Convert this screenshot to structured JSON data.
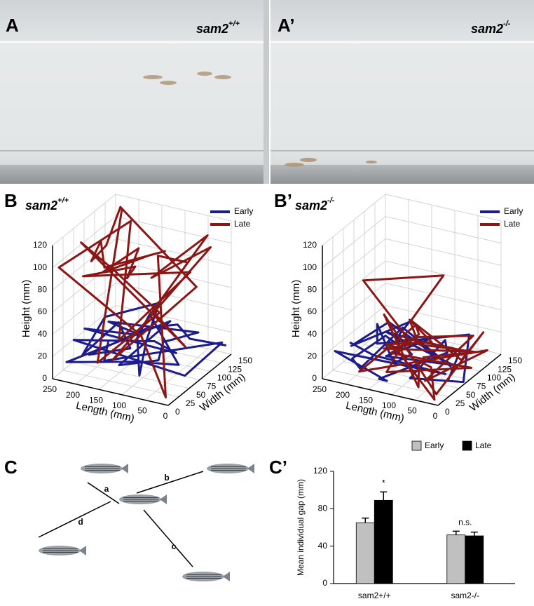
{
  "photo": {
    "left": {
      "label": "A",
      "gene": "sam2",
      "genotype": "+/+"
    },
    "right": {
      "label": "A’",
      "gene": "sam2",
      "genotype": "-/-"
    }
  },
  "plots3d": [
    {
      "label": "B",
      "gene": "sam2",
      "genotype": "+/+",
      "series": [
        {
          "name": "Early",
          "color": "#1c1c8c"
        },
        {
          "name": "Late",
          "color": "#8b1616"
        }
      ],
      "zlabel": "Height (mm)",
      "xlabel": "Length (mm)",
      "ylabel": "Width (mm)",
      "hlim": [
        0,
        120
      ],
      "llim": [
        0,
        250
      ],
      "wlim": [
        0,
        150
      ],
      "hticks": [
        0,
        20,
        40,
        60,
        80,
        100,
        120
      ],
      "lticks": [
        250,
        200,
        150,
        100,
        50,
        0
      ],
      "wticks": [
        0,
        25,
        50,
        75,
        100,
        125,
        150
      ]
    },
    {
      "label": "B’",
      "gene": "sam2",
      "genotype": "-/-",
      "series": [
        {
          "name": "Early",
          "color": "#1c1c8c"
        },
        {
          "name": "Late",
          "color": "#8b1616"
        }
      ],
      "zlabel": "Height (mm)",
      "xlabel": "Length (mm)",
      "ylabel": "Width (mm)",
      "hlim": [
        0,
        120
      ],
      "llim": [
        0,
        250
      ],
      "wlim": [
        0,
        150
      ],
      "hticks": [
        0,
        20,
        40,
        60,
        80,
        100,
        120
      ],
      "lticks": [
        250,
        200,
        150,
        100,
        50,
        0
      ],
      "wticks": [
        0,
        25,
        50,
        75,
        100,
        125,
        150
      ]
    }
  ],
  "diagram": {
    "label": "C",
    "edges": [
      "a",
      "b",
      "c",
      "d"
    ]
  },
  "chart_data": {
    "type": "bar",
    "label": "C’",
    "ylabel": "Mean individual gap (mm)",
    "categories": [
      "sam2+/+",
      "sam2-/-"
    ],
    "series": [
      {
        "name": "Early",
        "color": "#c0c0c0",
        "values": [
          65,
          52
        ],
        "errors": [
          5,
          4
        ]
      },
      {
        "name": "Late",
        "color": "#000000",
        "values": [
          89,
          51
        ],
        "errors": [
          9,
          4
        ]
      }
    ],
    "ylim": [
      0,
      120
    ],
    "yticks": [
      0,
      40,
      80,
      120
    ],
    "annotations": [
      {
        "text": "*",
        "category": 0
      },
      {
        "text": "n.s.",
        "category": 1
      }
    ]
  }
}
